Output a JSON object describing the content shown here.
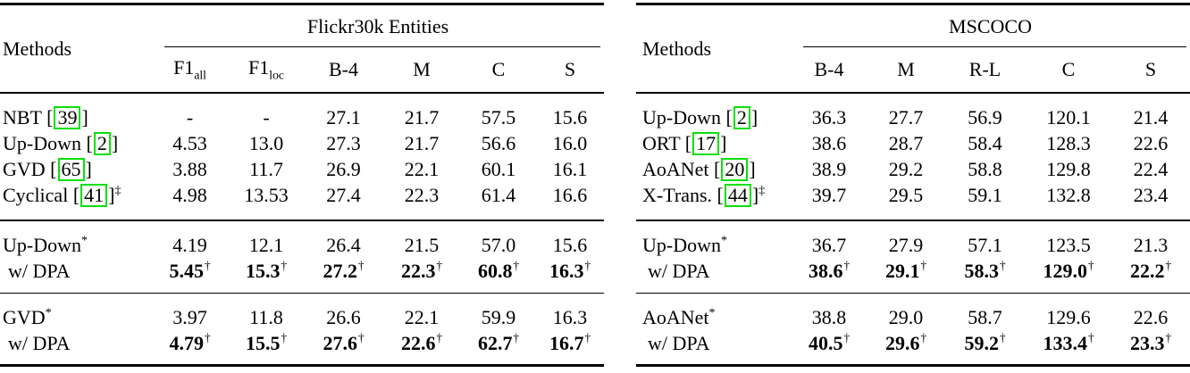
{
  "page": {
    "background_color": "#ffffff",
    "text_color": "#000000",
    "citation_border_color": "#0be00b"
  },
  "tables": [
    {
      "id": "flickr30k-entities",
      "methods_label": "Methods",
      "group_header": "Flickr30k Entities",
      "columns": [
        {
          "label": "F1",
          "sub": "all"
        },
        {
          "label": "F1",
          "sub": "loc"
        },
        {
          "label": "B-4"
        },
        {
          "label": "M"
        },
        {
          "label": "C"
        },
        {
          "label": "S"
        }
      ],
      "row_groups": [
        {
          "rows": [
            {
              "method": {
                "name": "NBT",
                "cite": "39"
              },
              "values": [
                "-",
                "-",
                "27.1",
                "21.7",
                "57.5",
                "15.6"
              ]
            },
            {
              "method": {
                "name": "Up-Down",
                "cite": "2"
              },
              "values": [
                "4.53",
                "13.0",
                "27.3",
                "21.7",
                "56.6",
                "16.0"
              ]
            },
            {
              "method": {
                "name": "GVD",
                "cite": "65"
              },
              "values": [
                "3.88",
                "11.7",
                "26.9",
                "22.1",
                "60.1",
                "16.1"
              ]
            },
            {
              "method": {
                "name": "Cyclical",
                "cite": "41",
                "method_sup": "‡"
              },
              "values": [
                "4.98",
                "13.53",
                "27.4",
                "22.3",
                "61.4",
                "16.6"
              ]
            }
          ]
        },
        {
          "rows": [
            {
              "method": {
                "name": "Up-Down",
                "method_sup": "*"
              },
              "values": [
                "4.19",
                "12.1",
                "26.4",
                "21.5",
                "57.0",
                "15.6"
              ]
            },
            {
              "method": {
                "name": "w/ DPA",
                "indent": true
              },
              "bold": true,
              "value_sup": "†",
              "values": [
                "5.45",
                "15.3",
                "27.2",
                "22.3",
                "60.8",
                "16.3"
              ]
            }
          ]
        },
        {
          "rows": [
            {
              "method": {
                "name": "GVD",
                "method_sup": "*"
              },
              "values": [
                "3.97",
                "11.8",
                "26.6",
                "22.1",
                "59.9",
                "16.3"
              ]
            },
            {
              "method": {
                "name": "w/ DPA",
                "indent": true
              },
              "bold": true,
              "value_sup": "†",
              "values": [
                "4.79",
                "15.5",
                "27.6",
                "22.6",
                "62.7",
                "16.7"
              ]
            }
          ]
        }
      ]
    },
    {
      "id": "mscoco",
      "methods_label": "Methods",
      "group_header": "MSCOCO",
      "columns": [
        {
          "label": "B-4"
        },
        {
          "label": "M"
        },
        {
          "label": "R-L"
        },
        {
          "label": "C"
        },
        {
          "label": "S"
        }
      ],
      "row_groups": [
        {
          "rows": [
            {
              "method": {
                "name": "Up-Down",
                "cite": "2"
              },
              "values": [
                "36.3",
                "27.7",
                "56.9",
                "120.1",
                "21.4"
              ]
            },
            {
              "method": {
                "name": "ORT",
                "cite": "17"
              },
              "values": [
                "38.6",
                "28.7",
                "58.4",
                "128.3",
                "22.6"
              ]
            },
            {
              "method": {
                "name": "AoANet",
                "cite": "20"
              },
              "values": [
                "38.9",
                "29.2",
                "58.8",
                "129.8",
                "22.4"
              ]
            },
            {
              "method": {
                "name": "X-Trans.",
                "cite": "44",
                "method_sup": "‡"
              },
              "values": [
                "39.7",
                "29.5",
                "59.1",
                "132.8",
                "23.4"
              ]
            }
          ]
        },
        {
          "rows": [
            {
              "method": {
                "name": "Up-Down",
                "method_sup": "*"
              },
              "values": [
                "36.7",
                "27.9",
                "57.1",
                "123.5",
                "21.3"
              ]
            },
            {
              "method": {
                "name": "w/ DPA",
                "indent": true
              },
              "bold": true,
              "value_sup": "†",
              "values": [
                "38.6",
                "29.1",
                "58.3",
                "129.0",
                "22.2"
              ]
            }
          ]
        },
        {
          "rows": [
            {
              "method": {
                "name": "AoANet",
                "method_sup": "*"
              },
              "values": [
                "38.8",
                "29.0",
                "58.7",
                "129.6",
                "22.6"
              ]
            },
            {
              "method": {
                "name": "w/ DPA",
                "indent": true
              },
              "bold": true,
              "value_sup": "†",
              "values": [
                "40.5",
                "29.6",
                "59.2",
                "133.4",
                "23.3"
              ]
            }
          ]
        }
      ]
    }
  ]
}
